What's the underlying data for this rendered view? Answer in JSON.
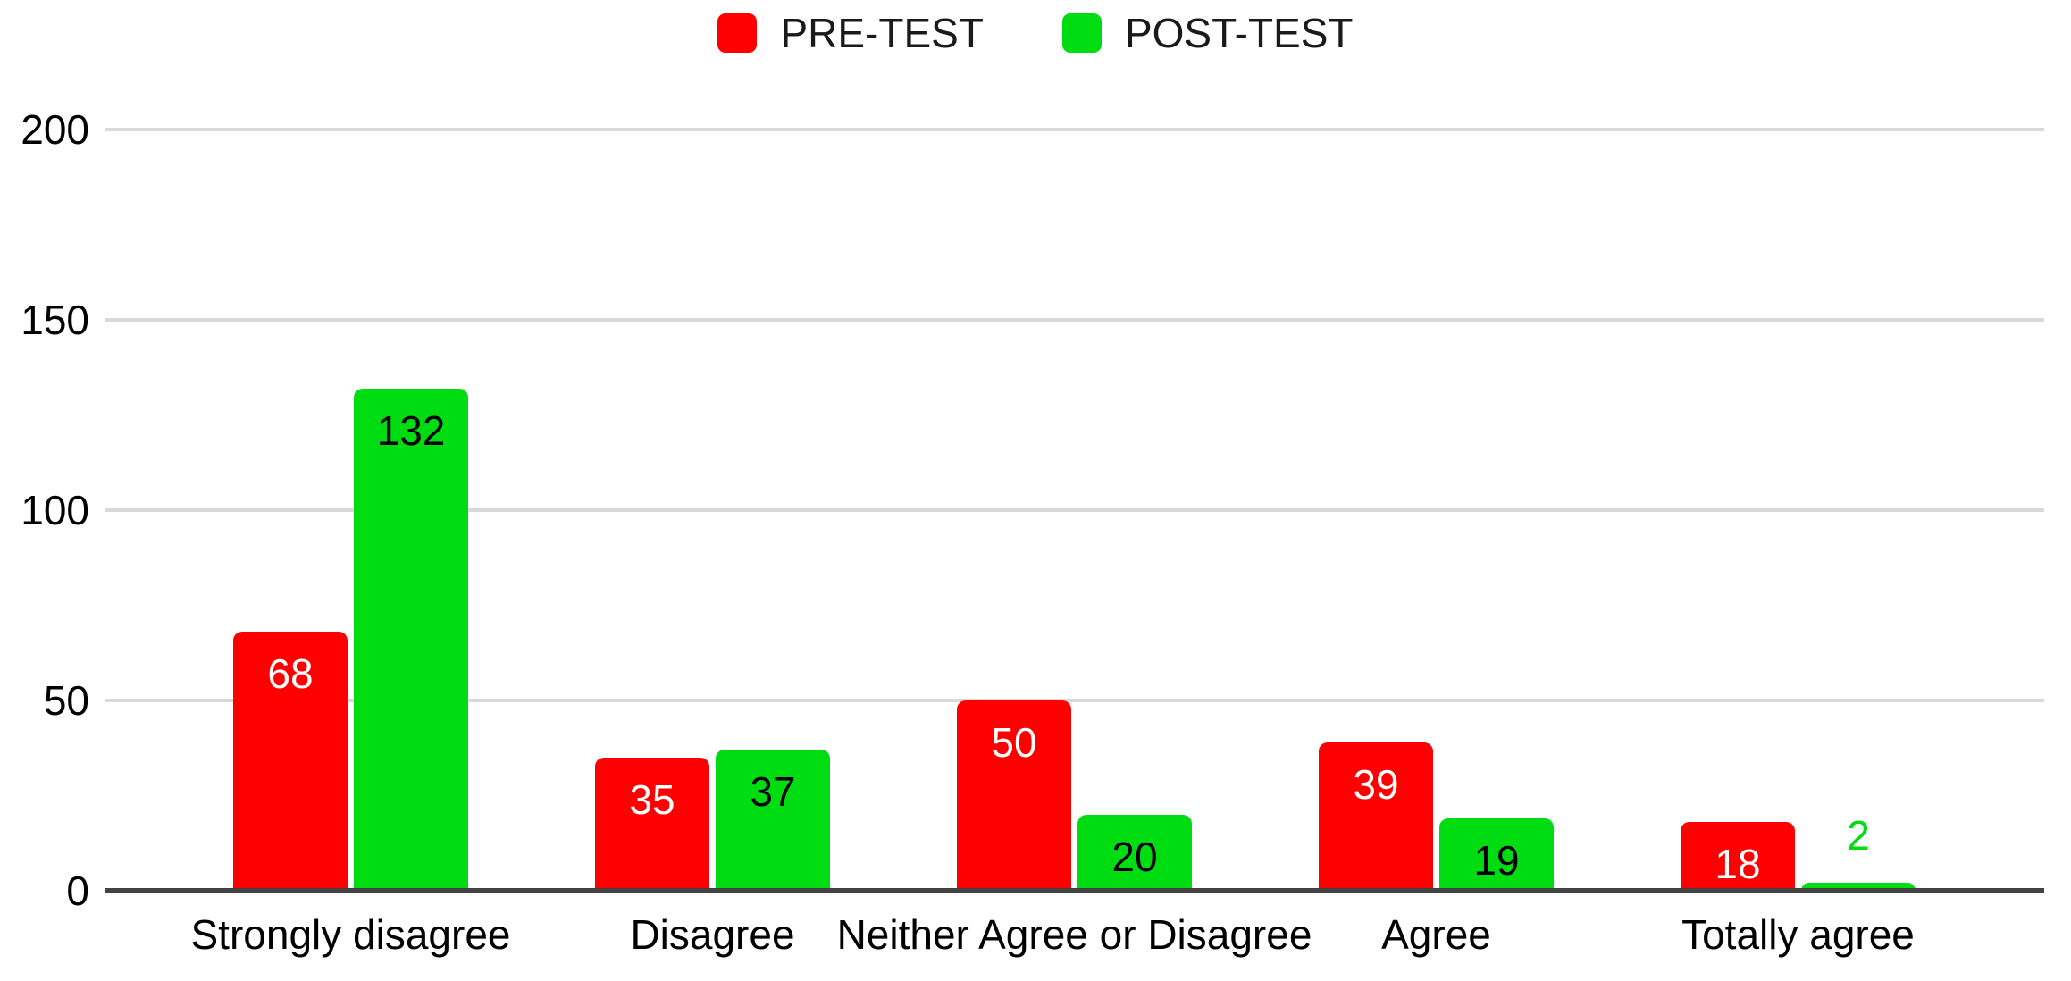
{
  "chart_data": {
    "type": "bar",
    "title": "",
    "xlabel": "",
    "ylabel": "",
    "categories": [
      "Strongly disagree",
      "Disagree",
      "Neither Agree or Disagree",
      "Agree",
      "Totally agree"
    ],
    "series": [
      {
        "name": "PRE-TEST",
        "color": "#ff0000",
        "label_color": "#ffffff",
        "values": [
          68,
          35,
          50,
          39,
          18
        ]
      },
      {
        "name": "POST-TEST",
        "color": "#00dc12",
        "label_color": "#000000",
        "values": [
          132,
          37,
          20,
          19,
          2
        ]
      }
    ],
    "ylim": [
      0,
      200
    ],
    "yticks": [
      0,
      50,
      100,
      150,
      200
    ],
    "grid": true,
    "legend_position": "top",
    "bar_value_labels": true
  },
  "styles": {
    "background": "#ffffff",
    "grid_color": "#d9d9d9",
    "axis_color": "#424242",
    "tick_text_color": "#000000",
    "category_text_color": "#000000",
    "legend_text_color": "#1a1a1a"
  }
}
